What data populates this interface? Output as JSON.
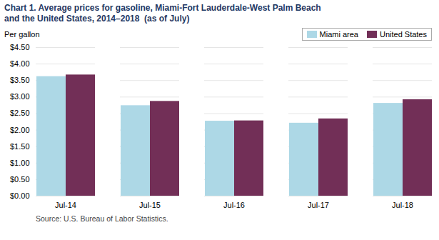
{
  "chart_data": {
    "type": "bar",
    "title": "Chart 1. Average prices for gasoline, Miami-Fort Lauderdale-West Palm Beach\nand the United States, 2014–2018  (as of July)",
    "y_label": "Per gallon",
    "caption": "Source: U.S. Bureau of Labor Statistics.",
    "categories": [
      "Jul-14",
      "Jul-15",
      "Jul-16",
      "Jul-17",
      "Jul-18"
    ],
    "series": [
      {
        "name": "Miami area",
        "color": "#ADD8E6",
        "values": [
          3.62,
          2.74,
          2.27,
          2.21,
          2.81
        ]
      },
      {
        "name": "United States",
        "color": "#722F57",
        "values": [
          3.67,
          2.87,
          2.28,
          2.34,
          2.92
        ]
      }
    ],
    "ylim": [
      0,
      4.5
    ],
    "yticks": [
      {
        "value": 0.0,
        "label": "$0.00"
      },
      {
        "value": 0.5,
        "label": "$0.50"
      },
      {
        "value": 1.0,
        "label": "$1.00"
      },
      {
        "value": 1.5,
        "label": "$1.50"
      },
      {
        "value": 2.0,
        "label": "$2.00"
      },
      {
        "value": 2.5,
        "label": "$2.50"
      },
      {
        "value": 3.0,
        "label": "$3.00"
      },
      {
        "value": 3.5,
        "label": "$3.50"
      },
      {
        "value": 4.0,
        "label": "$4.00"
      },
      {
        "value": 4.5,
        "label": "$4.50"
      }
    ],
    "grid": true,
    "legend": "upper right"
  }
}
